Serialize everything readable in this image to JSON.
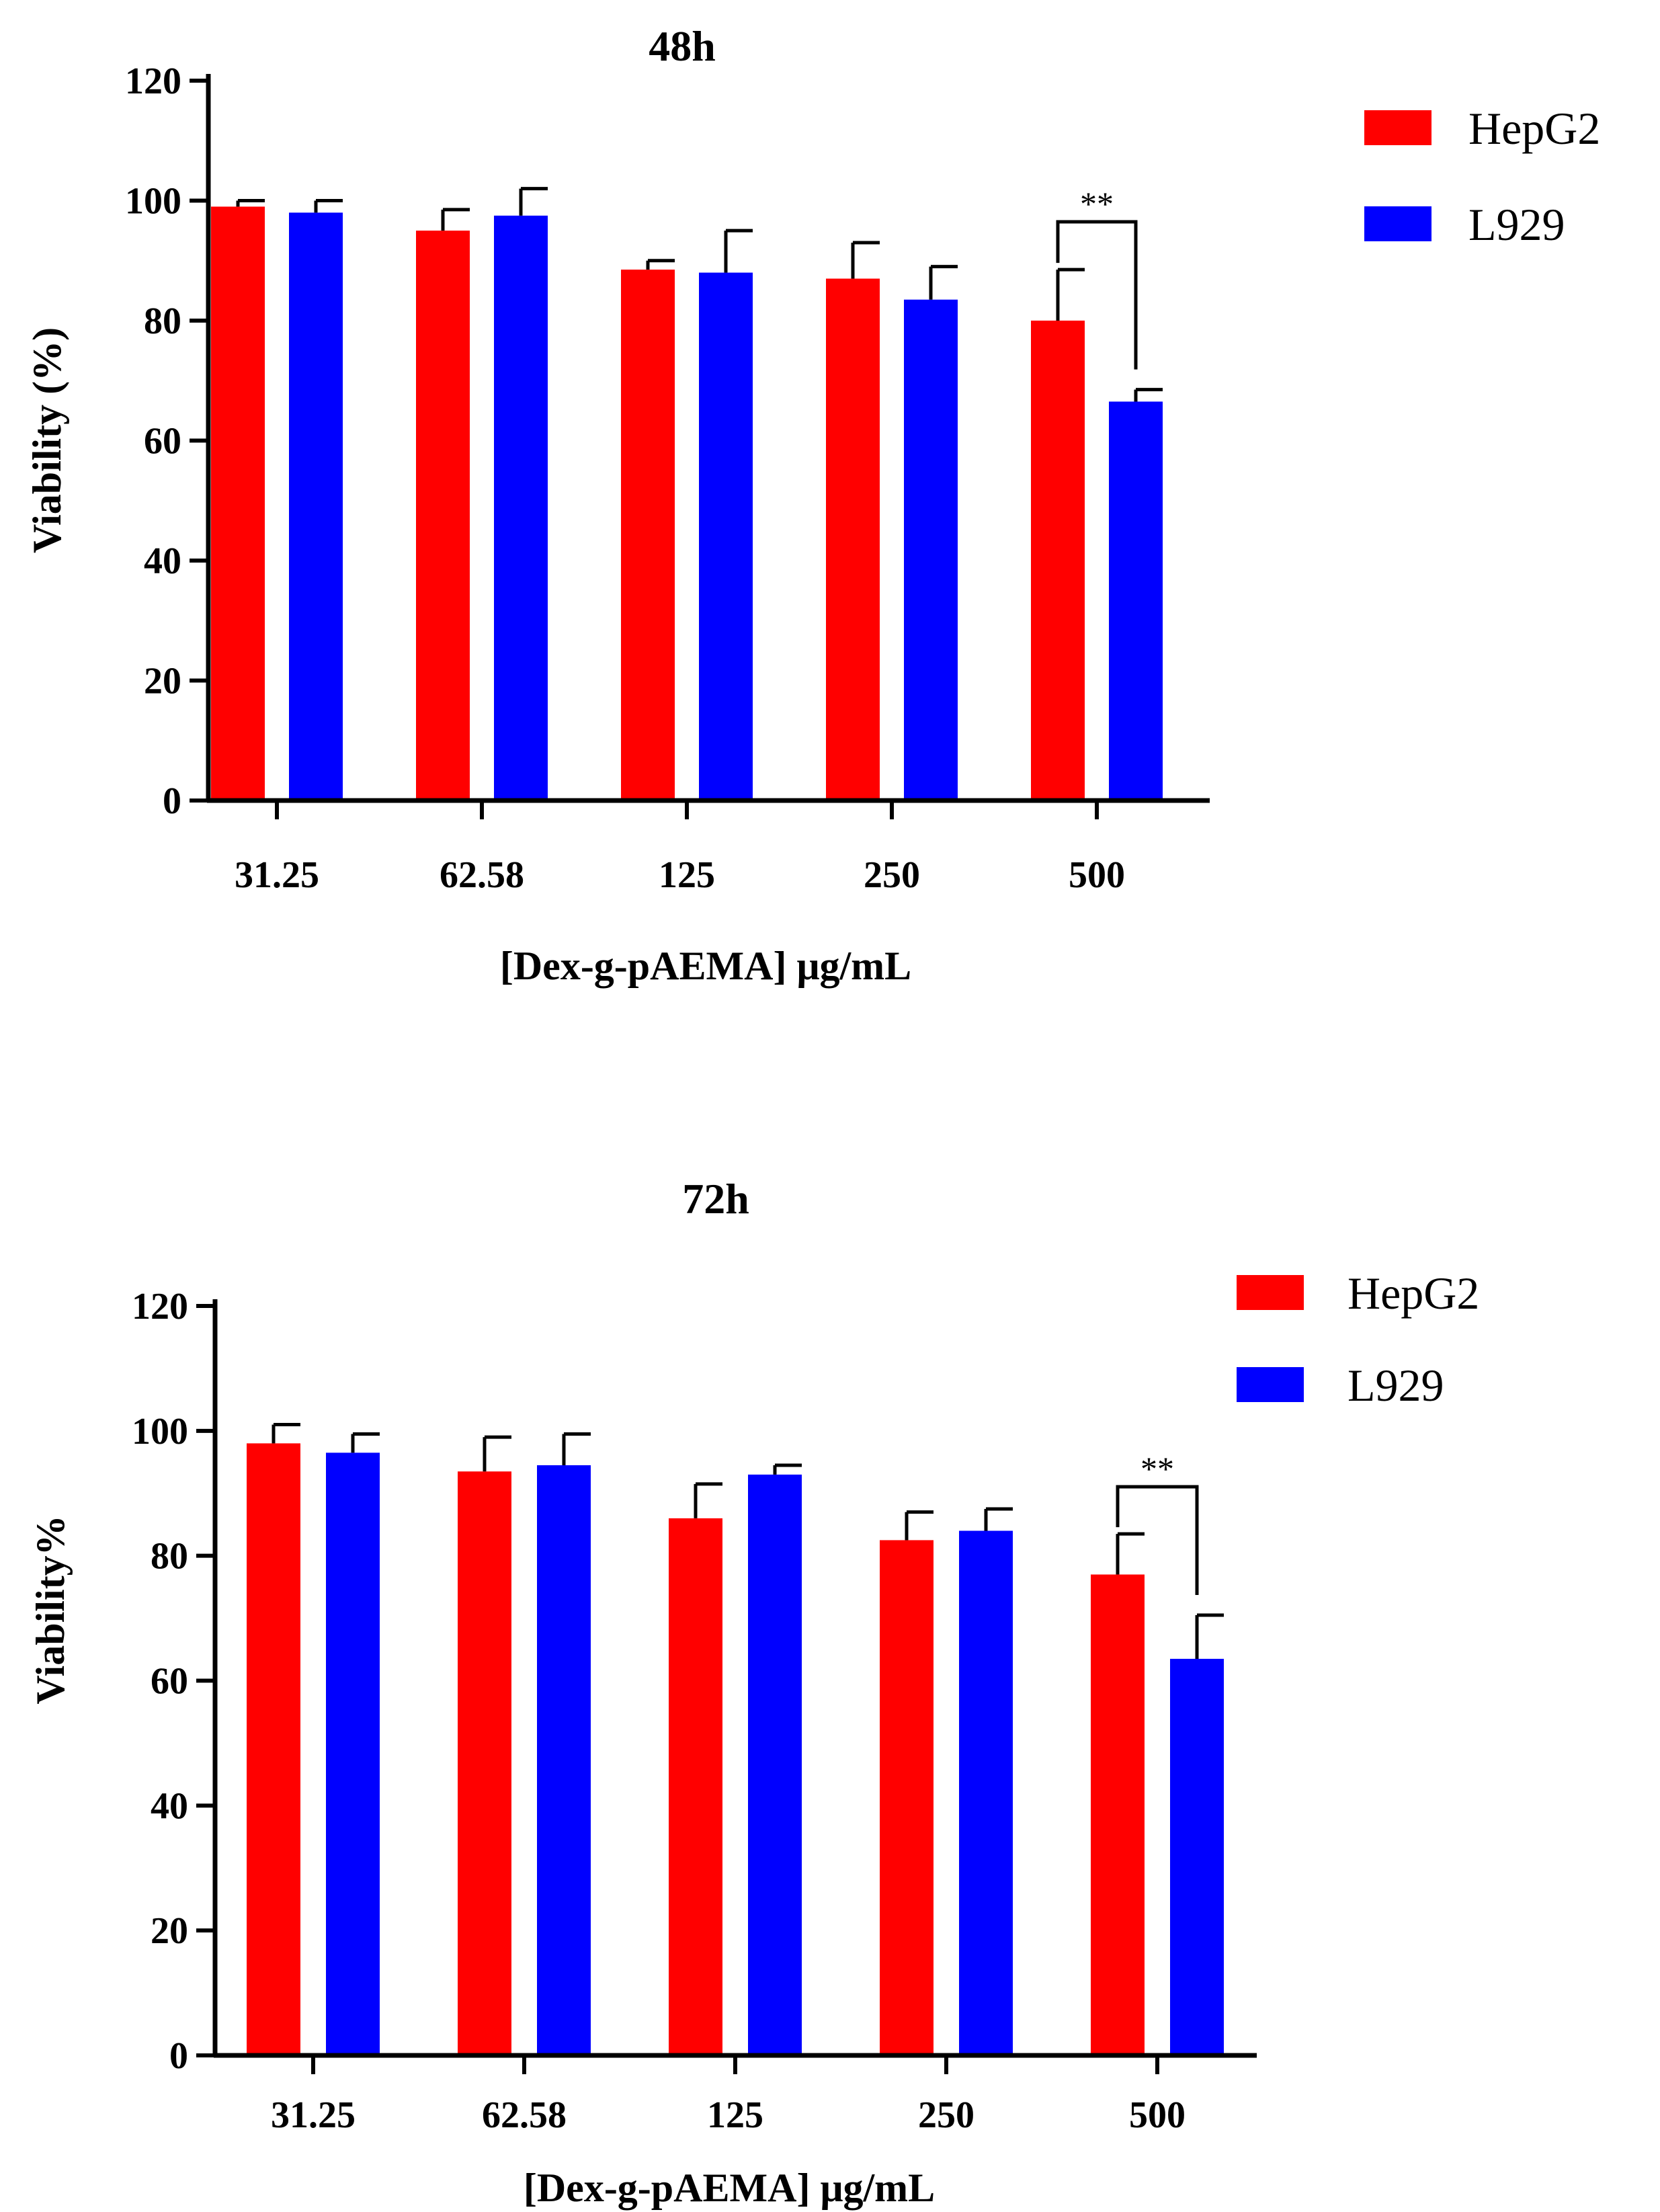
{
  "chart_data": [
    {
      "type": "bar",
      "title": "48h",
      "xlabel": "[Dex-g-pAEMA] μg/mL",
      "ylabel": "Viability (%)",
      "ylim": [
        0,
        120
      ],
      "yticks": [
        0,
        20,
        40,
        60,
        80,
        100,
        120
      ],
      "categories": [
        "31.25",
        "62.58",
        "125",
        "250",
        "500"
      ],
      "series": [
        {
          "name": "HepG2",
          "color": "#ff0000",
          "values": [
            99,
            95,
            88.5,
            87,
            80
          ],
          "errors": [
            1,
            3.5,
            1.5,
            6,
            8.5
          ]
        },
        {
          "name": "L929",
          "color": "#0000ff",
          "values": [
            98,
            97.5,
            88,
            83.5,
            66.5
          ],
          "errors": [
            2,
            4.5,
            7,
            5.5,
            2
          ]
        }
      ],
      "significance": [
        {
          "category": "500",
          "label": "**"
        }
      ],
      "legend": "top-right"
    },
    {
      "type": "bar",
      "title": "72h",
      "xlabel": "[Dex-g-pAEMA] μg/mL",
      "ylabel": "Viability%",
      "ylim": [
        0,
        120
      ],
      "yticks": [
        0,
        20,
        40,
        60,
        80,
        100,
        120
      ],
      "categories": [
        "31.25",
        "62.58",
        "125",
        "250",
        "500"
      ],
      "series": [
        {
          "name": "HepG2",
          "color": "#ff0000",
          "values": [
            98,
            93.5,
            86,
            82.5,
            77
          ],
          "errors": [
            3,
            5.5,
            5.5,
            4.5,
            6.5
          ]
        },
        {
          "name": "L929",
          "color": "#0000ff",
          "values": [
            96.5,
            94.5,
            93,
            84,
            63.5
          ],
          "errors": [
            3,
            5,
            1.5,
            3.5,
            7
          ]
        }
      ],
      "significance": [
        {
          "category": "500",
          "label": "**"
        }
      ],
      "legend": "top-right"
    }
  ]
}
